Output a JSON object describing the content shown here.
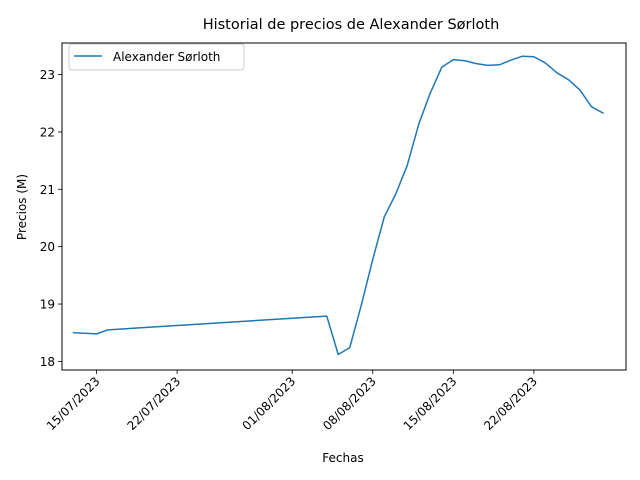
{
  "chart_data": {
    "type": "line",
    "title": "Historial de precios de Alexander Sørloth",
    "xlabel": "Fechas",
    "ylabel": "Precios (M)",
    "x_tick_labels": [
      "15/07/2023",
      "22/07/2023",
      "01/08/2023",
      "08/08/2023",
      "15/08/2023",
      "22/08/2023"
    ],
    "y_ticks": [
      18,
      19,
      20,
      21,
      22,
      23
    ],
    "ylim": [
      17.85,
      23.55
    ],
    "xlim": [
      "2023-07-12",
      "2023-08-30"
    ],
    "legend_position": "upper-left",
    "grid": false,
    "series": [
      {
        "name": "Alexander Sørloth",
        "color": "#1f77b4",
        "points": [
          {
            "x": "2023-07-13",
            "y": 18.5
          },
          {
            "x": "2023-07-15",
            "y": 18.48
          },
          {
            "x": "2023-07-16",
            "y": 18.55
          },
          {
            "x": "2023-08-04",
            "y": 18.79
          },
          {
            "x": "2023-08-05",
            "y": 18.12
          },
          {
            "x": "2023-08-06",
            "y": 18.24
          },
          {
            "x": "2023-08-07",
            "y": 18.98
          },
          {
            "x": "2023-08-08",
            "y": 19.78
          },
          {
            "x": "2023-08-09",
            "y": 20.52
          },
          {
            "x": "2023-08-10",
            "y": 20.92
          },
          {
            "x": "2023-08-11",
            "y": 21.42
          },
          {
            "x": "2023-08-12",
            "y": 22.14
          },
          {
            "x": "2023-08-13",
            "y": 22.68
          },
          {
            "x": "2023-08-14",
            "y": 23.13
          },
          {
            "x": "2023-08-15",
            "y": 23.26
          },
          {
            "x": "2023-08-16",
            "y": 23.24
          },
          {
            "x": "2023-08-17",
            "y": 23.19
          },
          {
            "x": "2023-08-18",
            "y": 23.16
          },
          {
            "x": "2023-08-19",
            "y": 23.17
          },
          {
            "x": "2023-08-20",
            "y": 23.25
          },
          {
            "x": "2023-08-21",
            "y": 23.32
          },
          {
            "x": "2023-08-22",
            "y": 23.31
          },
          {
            "x": "2023-08-23",
            "y": 23.2
          },
          {
            "x": "2023-08-24",
            "y": 23.03
          },
          {
            "x": "2023-08-25",
            "y": 22.91
          },
          {
            "x": "2023-08-26",
            "y": 22.73
          },
          {
            "x": "2023-08-27",
            "y": 22.44
          },
          {
            "x": "2023-08-28",
            "y": 22.33
          }
        ]
      }
    ]
  }
}
